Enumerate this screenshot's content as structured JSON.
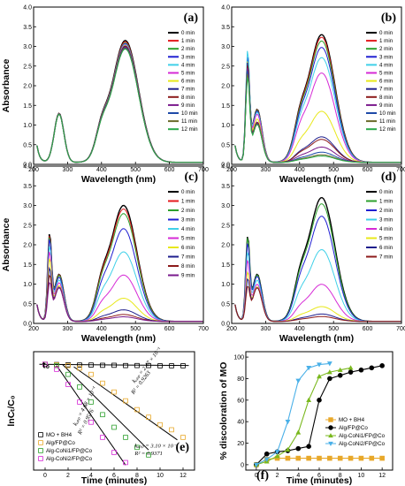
{
  "chart_data": [
    {
      "panel": "(a)",
      "type": "line",
      "xlabel": "Wavelength (nm)",
      "ylabel": "Absorbance",
      "xlim": [
        200,
        700
      ],
      "ylim": [
        0,
        4.0
      ],
      "xticks": [
        200,
        300,
        400,
        500,
        600,
        700
      ],
      "yticks": [
        0.0,
        0.5,
        1.0,
        1.5,
        2.0,
        2.5,
        3.0,
        3.5,
        4.0
      ],
      "legend_position": "right",
      "peaks": {
        "p1": [
          275,
          1.25
        ],
        "p2": [
          470,
          3.1
        ]
      },
      "series": [
        {
          "name": "0 min",
          "color": "#000000",
          "scale": 1.0,
          "uvpeak": 0
        },
        {
          "name": "1 min",
          "color": "#e41a1c",
          "scale": 0.99,
          "uvpeak": 0
        },
        {
          "name": "2 min",
          "color": "#2ca02c",
          "scale": 0.98,
          "uvpeak": 0
        },
        {
          "name": "3 min",
          "color": "#1f1fd1",
          "scale": 0.975,
          "uvpeak": 0
        },
        {
          "name": "4 min",
          "color": "#3fd0e8",
          "scale": 0.97,
          "uvpeak": 0
        },
        {
          "name": "5 min",
          "color": "#d62ad6",
          "scale": 0.965,
          "uvpeak": 0
        },
        {
          "name": "6 min",
          "color": "#e8e81a",
          "scale": 0.96,
          "uvpeak": 0
        },
        {
          "name": "7 min",
          "color": "#1e1e8c",
          "scale": 0.955,
          "uvpeak": 0
        },
        {
          "name": "8 min",
          "color": "#8c1a1a",
          "scale": 0.95,
          "uvpeak": 0
        },
        {
          "name": "9 min",
          "color": "#7a1a8c",
          "scale": 0.945,
          "uvpeak": 0
        },
        {
          "name": "10 min",
          "color": "#1e4aa8",
          "scale": 0.94,
          "uvpeak": 0
        },
        {
          "name": "11 min",
          "color": "#6b6b2a",
          "scale": 0.935,
          "uvpeak": 0
        },
        {
          "name": "12 min",
          "color": "#2aa84a",
          "scale": 0.93,
          "uvpeak": 0
        }
      ]
    },
    {
      "panel": "(b)",
      "type": "line",
      "xlabel": "Wavelength (nm)",
      "ylabel": "",
      "xlim": [
        200,
        700
      ],
      "ylim": [
        0,
        4.0
      ],
      "xticks": [
        200,
        300,
        400,
        500,
        600,
        700
      ],
      "yticks": [
        0.0,
        0.5,
        1.0,
        1.5,
        2.0,
        2.5,
        3.0,
        3.5,
        4.0
      ],
      "legend_position": "right",
      "peaks": {
        "p1": [
          275,
          1.35
        ],
        "p2": [
          465,
          3.25
        ]
      },
      "series": [
        {
          "name": "0 min",
          "color": "#000000",
          "scale": 1.0,
          "uvpeak": 3.3
        },
        {
          "name": "1 min",
          "color": "#e41a1c",
          "scale": 0.98,
          "uvpeak": 3.1
        },
        {
          "name": "2 min",
          "color": "#2ca02c",
          "scale": 0.95,
          "uvpeak": 3.0
        },
        {
          "name": "3 min",
          "color": "#1f1fd1",
          "scale": 0.9,
          "uvpeak": 3.5
        },
        {
          "name": "4 min",
          "color": "#3fd0e8",
          "scale": 0.82,
          "uvpeak": 3.6
        },
        {
          "name": "5 min",
          "color": "#d62ad6",
          "scale": 0.7,
          "uvpeak": 3.0
        },
        {
          "name": "6 min",
          "color": "#e8e81a",
          "scale": 0.4,
          "uvpeak": 2.8
        },
        {
          "name": "7 min",
          "color": "#1e1e8c",
          "scale": 0.2,
          "uvpeak": 2.6
        },
        {
          "name": "8 min",
          "color": "#8c1a1a",
          "scale": 0.18,
          "uvpeak": 2.5
        },
        {
          "name": "9 min",
          "color": "#7a1a8c",
          "scale": 0.12,
          "uvpeak": 2.4
        },
        {
          "name": "10 min",
          "color": "#1e4aa8",
          "scale": 0.08,
          "uvpeak": 2.3
        },
        {
          "name": "11 min",
          "color": "#6b6b2a",
          "scale": 0.06,
          "uvpeak": 2.2
        },
        {
          "name": "12 min",
          "color": "#2aa84a",
          "scale": 0.05,
          "uvpeak": 2.1
        }
      ]
    },
    {
      "panel": "(c)",
      "type": "line",
      "xlabel": "Wavelength (nm)",
      "ylabel": "Absorbance",
      "xlim": [
        200,
        700
      ],
      "ylim": [
        0,
        4.0
      ],
      "xticks": [
        200,
        300,
        400,
        500,
        600,
        700
      ],
      "yticks": [
        0.0,
        0.5,
        1.0,
        1.5,
        2.0,
        2.5,
        3.0,
        3.5,
        4.0
      ],
      "legend_position": "right",
      "peaks": {
        "p1": [
          275,
          1.2
        ],
        "p2": [
          465,
          2.95
        ]
      },
      "series": [
        {
          "name": "0 min",
          "color": "#000000",
          "scale": 1.0,
          "uvpeak": 3.0
        },
        {
          "name": "1 min",
          "color": "#e41a1c",
          "scale": 0.97,
          "uvpeak": 2.9
        },
        {
          "name": "2 min",
          "color": "#2ca02c",
          "scale": 0.93,
          "uvpeak": 2.8
        },
        {
          "name": "3 min",
          "color": "#1f1fd1",
          "scale": 0.8,
          "uvpeak": 2.6
        },
        {
          "name": "4 min",
          "color": "#3fd0e8",
          "scale": 0.6,
          "uvpeak": 2.2
        },
        {
          "name": "5 min",
          "color": "#d62ad6",
          "scale": 0.4,
          "uvpeak": 1.9
        },
        {
          "name": "6 min",
          "color": "#e8e81a",
          "scale": 0.2,
          "uvpeak": 1.6
        },
        {
          "name": "7 min",
          "color": "#1e1e8c",
          "scale": 0.1,
          "uvpeak": 1.3
        },
        {
          "name": "8 min",
          "color": "#8c1a1a",
          "scale": 0.06,
          "uvpeak": 1.1
        },
        {
          "name": "9 min",
          "color": "#7a1a8c",
          "scale": 0.04,
          "uvpeak": 0.9
        }
      ]
    },
    {
      "panel": "(d)",
      "type": "line",
      "xlabel": "Wavelength (nm)",
      "ylabel": "",
      "xlim": [
        200,
        700
      ],
      "ylim": [
        0,
        4.0
      ],
      "xticks": [
        200,
        300,
        400,
        500,
        600,
        700
      ],
      "yticks": [
        0.0,
        0.5,
        1.0,
        1.5,
        2.0,
        2.5,
        3.0,
        3.5,
        4.0
      ],
      "legend_position": "right",
      "peaks": {
        "p1": [
          275,
          1.2
        ],
        "p2": [
          465,
          3.15
        ]
      },
      "series": [
        {
          "name": "0 min",
          "color": "#000000",
          "scale": 1.0,
          "uvpeak": 2.9
        },
        {
          "name": "1 min",
          "color": "#2ca02c",
          "scale": 0.95,
          "uvpeak": 2.8
        },
        {
          "name": "2 min",
          "color": "#1f1fd1",
          "scale": 0.85,
          "uvpeak": 2.5
        },
        {
          "name": "3 min",
          "color": "#3fd0e8",
          "scale": 0.58,
          "uvpeak": 2.0
        },
        {
          "name": "4 min",
          "color": "#d62ad6",
          "scale": 0.3,
          "uvpeak": 1.6
        },
        {
          "name": "5 min",
          "color": "#e8e81a",
          "scale": 0.12,
          "uvpeak": 1.2
        },
        {
          "name": "6 min",
          "color": "#1e1e8c",
          "scale": 0.06,
          "uvpeak": 1.0
        },
        {
          "name": "7 min",
          "color": "#8c1a1a",
          "scale": 0.04,
          "uvpeak": 0.8
        }
      ]
    },
    {
      "panel": "(e)",
      "type": "scatter",
      "xlabel": "Time (minutes)",
      "ylabel": "lnCₜ/C₀",
      "xlim": [
        -1,
        13
      ],
      "ylim": [
        -4.2,
        0.5
      ],
      "xticks": [
        0,
        2,
        4,
        6,
        8,
        10,
        12
      ],
      "legend_position": "bottom-left",
      "t0_label": "t₀",
      "series": [
        {
          "name": "MO + BH4",
          "color": "#000000",
          "marker": "square",
          "x": [
            0,
            1,
            2,
            3,
            4,
            5,
            6,
            7,
            8,
            9,
            10,
            11,
            12
          ],
          "y": [
            0,
            -0.01,
            -0.02,
            -0.03,
            -0.03,
            -0.04,
            -0.04,
            -0.05,
            -0.05,
            -0.05,
            -0.06,
            -0.06,
            -0.06
          ]
        },
        {
          "name": "Alg/FP@Co",
          "color": "#e8a82a",
          "marker": "square",
          "x": [
            0,
            1,
            2,
            3,
            4,
            5,
            6,
            7,
            8,
            9,
            10,
            11,
            12
          ],
          "y": [
            0,
            -0.02,
            -0.05,
            -0.15,
            -0.4,
            -0.75,
            -1.1,
            -1.45,
            -1.8,
            -2.1,
            -2.4,
            -2.6,
            -2.9
          ]
        },
        {
          "name": "Alg-CoNi1/FP@Co",
          "color": "#2ca02c",
          "marker": "square",
          "x": [
            0,
            1,
            2,
            3,
            4,
            5,
            6,
            7,
            8,
            9
          ],
          "y": [
            0,
            -0.05,
            -0.4,
            -0.9,
            -1.5,
            -2.0,
            -2.5,
            -2.9,
            -3.3,
            -3.6
          ]
        },
        {
          "name": "Alg-CoNi2/FP@Co",
          "color": "#d62ad6",
          "marker": "square",
          "x": [
            0,
            1,
            2,
            3,
            4,
            5,
            6,
            7
          ],
          "y": [
            0,
            -0.2,
            -0.8,
            -1.5,
            -2.3,
            -2.9,
            -3.5,
            -3.9
          ]
        }
      ],
      "fit_lines": [
        {
          "x": [
            1.5,
            9
          ],
          "y": [
            0,
            -3.4
          ]
        },
        {
          "x": [
            2.5,
            11.5
          ],
          "y": [
            -0.1,
            -3.0
          ]
        },
        {
          "x": [
            1,
            7
          ],
          "y": [
            -0.05,
            -4.0
          ]
        },
        {
          "x": [
            -0.5,
            12.5
          ],
          "y": [
            0,
            -0.05
          ]
        }
      ],
      "annotations": {
        "k1": "kₐₚₚ = 2.47 × 10⁻¹",
        "r1": "R² = 0.9263",
        "k2": "kₐₚₚ = 4.68 × 10⁻¹",
        "r2": "R² = 0.9576",
        "k3": "kₐₚₚ = 3.10 × 10⁻¹",
        "r3": "R² = 0.9371"
      }
    },
    {
      "panel": "(f)",
      "type": "line",
      "xlabel": "Time (minutes)",
      "ylabel": "% discoloration of MO",
      "xlim": [
        -1,
        13
      ],
      "ylim": [
        -5,
        105
      ],
      "xticks": [
        0,
        2,
        4,
        6,
        8,
        10,
        12
      ],
      "yticks": [
        0,
        20,
        40,
        60,
        80,
        100
      ],
      "legend_position": "bottom-right",
      "series": [
        {
          "name": "MO + BH4",
          "color": "#e8a82a",
          "marker": "square",
          "x": [
            0,
            1,
            2,
            3,
            4,
            5,
            6,
            7,
            8,
            9,
            10,
            11,
            12
          ],
          "y": [
            0,
            5,
            6,
            6,
            6,
            6,
            6,
            6,
            6,
            6,
            6,
            6,
            6
          ]
        },
        {
          "name": "Alg/FP@Co",
          "color": "#000000",
          "marker": "circle",
          "x": [
            0,
            1,
            2,
            3,
            4,
            5,
            6,
            7,
            8,
            9,
            10,
            11,
            12
          ],
          "y": [
            0,
            10,
            12,
            13,
            15,
            17,
            60,
            80,
            83,
            86,
            88,
            90,
            92
          ]
        },
        {
          "name": "Alg-CoNi1/FP@Co",
          "color": "#7ab81e",
          "marker": "triangle",
          "x": [
            0,
            1,
            2,
            3,
            4,
            5,
            6,
            7,
            8,
            9
          ],
          "y": [
            0,
            3,
            8,
            14,
            30,
            60,
            82,
            86,
            88,
            90
          ]
        },
        {
          "name": "Alg-CoNi2/FP@Co",
          "color": "#4ab0e8",
          "marker": "triangle-down",
          "x": [
            0,
            1,
            2,
            3,
            4,
            5,
            6,
            7
          ],
          "y": [
            0,
            5,
            12,
            40,
            78,
            90,
            93,
            94
          ]
        }
      ]
    }
  ]
}
